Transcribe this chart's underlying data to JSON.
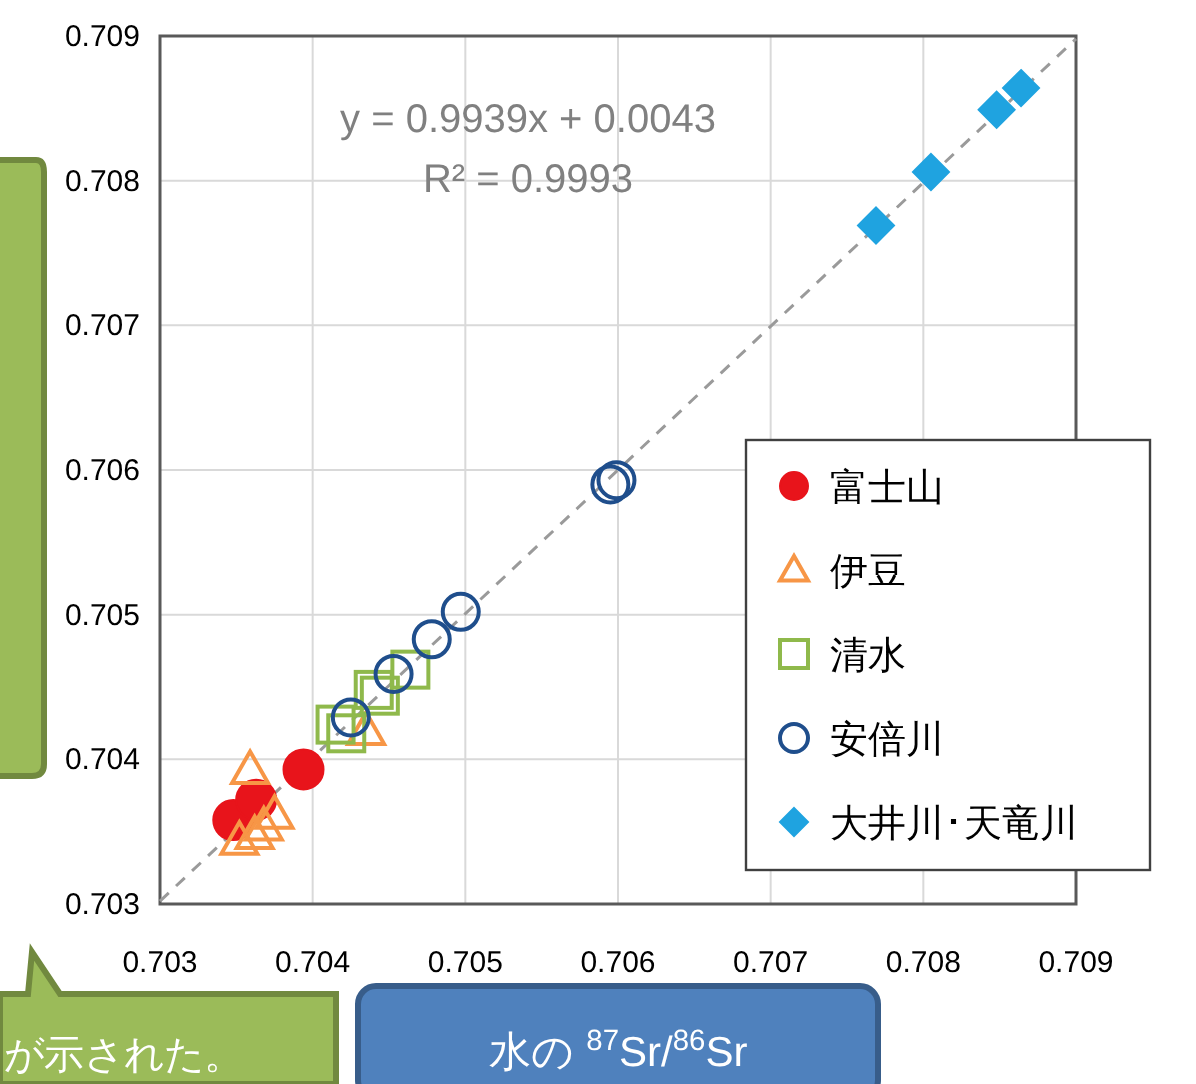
{
  "chart_data": {
    "type": "scatter",
    "xlabel": "水の $^{87}$Sr/$^{86}$Sr",
    "xlim": [
      0.703,
      0.709
    ],
    "ylim": [
      0.703,
      0.709
    ],
    "xticks": [
      0.703,
      0.704,
      0.705,
      0.706,
      0.707,
      0.708,
      0.709
    ],
    "yticks": [
      0.703,
      0.704,
      0.705,
      0.706,
      0.707,
      0.708,
      0.709
    ],
    "grid": true,
    "legend": "bottom right",
    "annotations": [
      "y = 0.9939x + 0.0043",
      "R² = 0.9993",
      "が示された。"
    ],
    "series": [
      {
        "name": "富士山",
        "color": "#e8141b",
        "marker": "circle",
        "x": [
          0.70394,
          0.70348,
          0.70363
        ],
        "values": [
          0.70393,
          0.70358,
          0.70372
        ]
      },
      {
        "name": "伊豆",
        "color": "#f79646",
        "marker": "triangle",
        "x": [
          0.70359,
          0.70375,
          0.70368,
          0.70362,
          0.70352,
          0.70435
        ],
        "values": [
          0.70393,
          0.70362,
          0.70354,
          0.70348,
          0.70344,
          0.7042
        ]
      },
      {
        "name": "清水",
        "color": "#8fb94b",
        "marker": "square",
        "x": [
          0.70464,
          0.70444,
          0.70415,
          0.7044,
          0.70422
        ],
        "values": [
          0.70462,
          0.70444,
          0.70424,
          0.70448,
          0.70418
        ]
      },
      {
        "name": "安倍川",
        "color": "#1f4e8c",
        "marker": "circle",
        "x": [
          0.70595,
          0.70599,
          0.70497,
          0.70478,
          0.70453,
          0.70425
        ],
        "values": [
          0.7059,
          0.70593,
          0.70502,
          0.70483,
          0.70459,
          0.70429
        ]
      },
      {
        "name": "大井川･天竜川",
        "color": "#1fa3e0",
        "marker": "diamond",
        "x": [
          0.70769,
          0.70805,
          0.70848,
          0.70864
        ],
        "values": [
          0.70769,
          0.70806,
          0.70849,
          0.70864
        ]
      },
      {
        "type": "line",
        "color": "#9a9a9a",
        "line_style": "dashed",
        "x": [
          0.703,
          0.709
        ],
        "values": [
          0.70302,
          0.70898
        ]
      }
    ]
  }
}
